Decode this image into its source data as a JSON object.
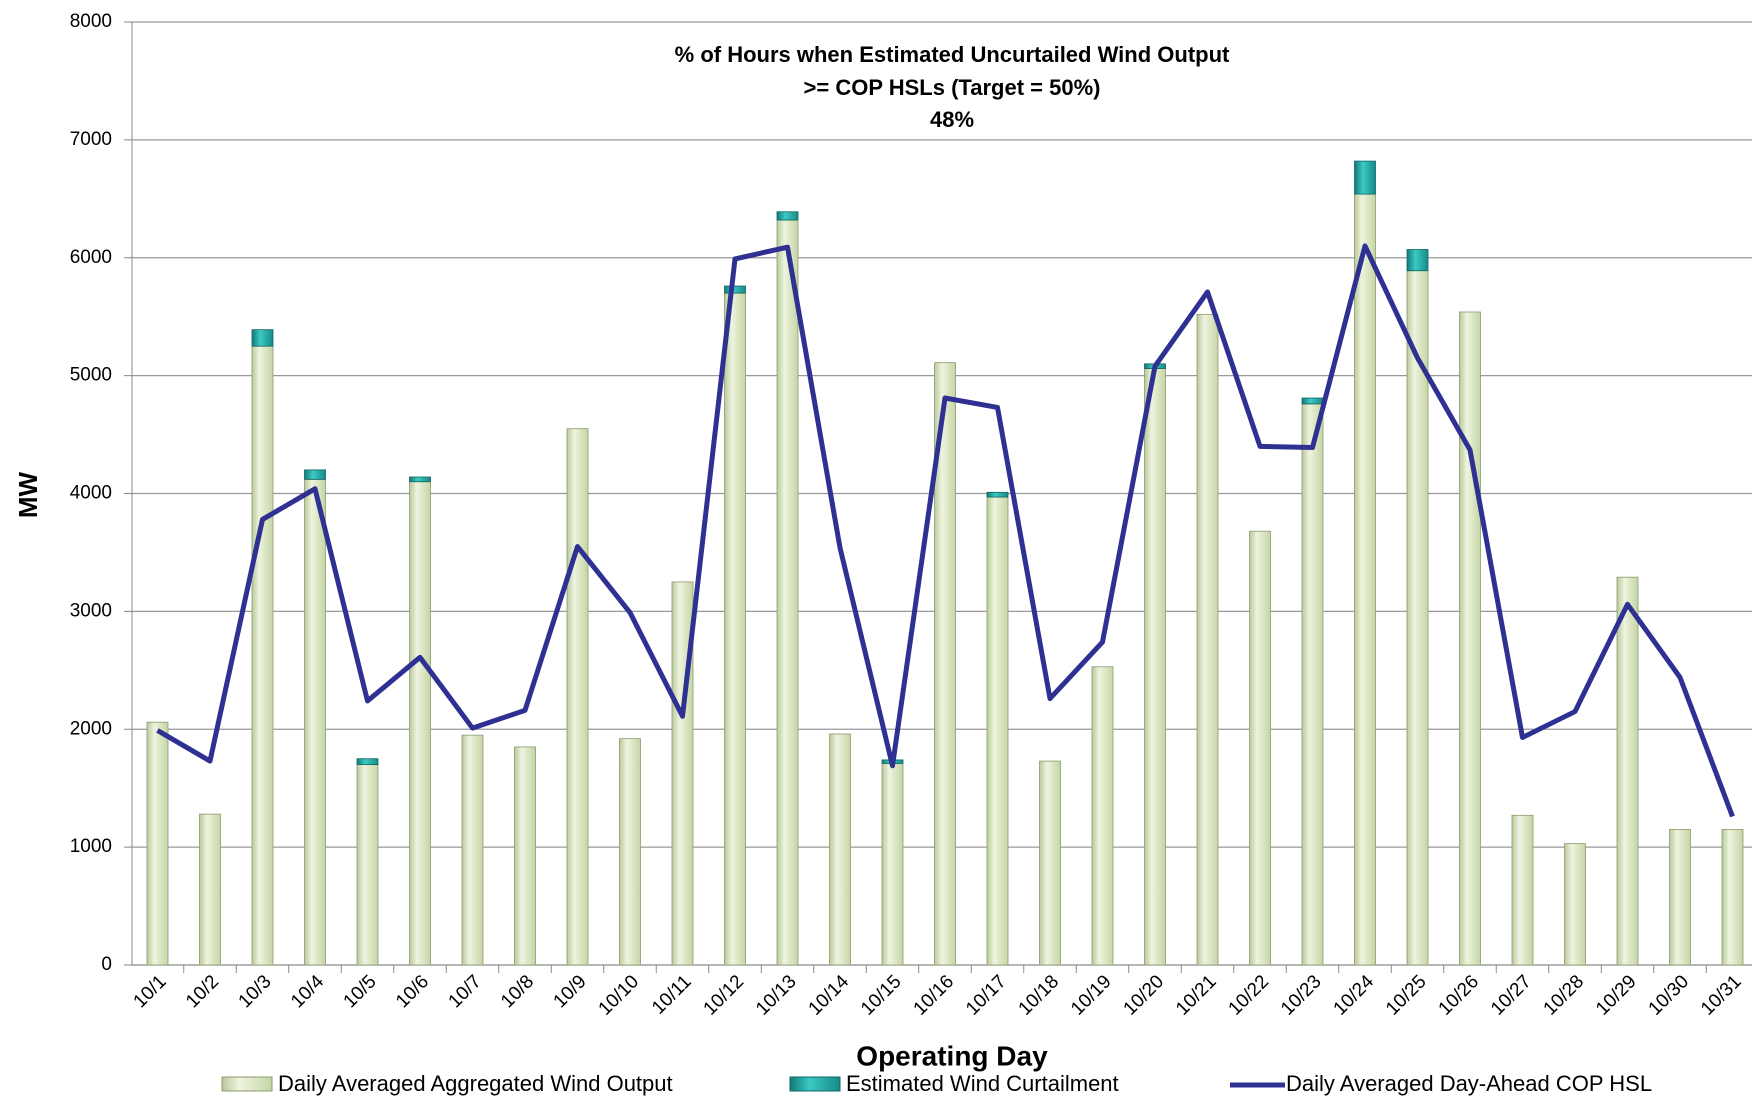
{
  "chart_data": {
    "type": "bar-line",
    "title": "% of Hours when Estimated Uncurtailed Wind Output",
    "subtitle": ">= COP HSLs (Target = 50%)",
    "annotation": "48%",
    "x_label": "Operating Day",
    "y_label": "MW",
    "categories": [
      "10/1",
      "10/2",
      "10/3",
      "10/4",
      "10/5",
      "10/6",
      "10/7",
      "10/8",
      "10/9",
      "10/10",
      "10/11",
      "10/12",
      "10/13",
      "10/14",
      "10/15",
      "10/16",
      "10/17",
      "10/18",
      "10/19",
      "10/20",
      "10/21",
      "10/22",
      "10/23",
      "10/24",
      "10/25",
      "10/26",
      "10/27",
      "10/28",
      "10/29",
      "10/30",
      "10/31"
    ],
    "series": [
      {
        "name": "Daily Averaged Aggregated Wind Output",
        "type": "bar",
        "color": "#d8e4bc",
        "values": [
          2060,
          1280,
          5250,
          4120,
          1700,
          4100,
          1950,
          1850,
          4550,
          1920,
          3250,
          5700,
          6320,
          1960,
          1710,
          5110,
          3970,
          1730,
          2530,
          5060,
          5520,
          3680,
          4760,
          6540,
          5890,
          5540,
          1270,
          1030,
          3290,
          1150,
          1150
        ]
      },
      {
        "name": "Estimated Wind Curtailment",
        "type": "bar",
        "color": "#1fa3a0",
        "values": [
          0,
          0,
          140,
          80,
          50,
          40,
          0,
          0,
          0,
          0,
          0,
          60,
          70,
          0,
          30,
          0,
          40,
          0,
          0,
          40,
          0,
          0,
          50,
          280,
          180,
          0,
          0,
          0,
          0,
          0,
          0
        ]
      },
      {
        "name": "Daily Averaged Day-Ahead COP HSL",
        "type": "line",
        "color": "#2e3192",
        "values": [
          1990,
          1730,
          3780,
          4040,
          2240,
          2610,
          2010,
          2160,
          3550,
          2990,
          2110,
          5990,
          6090,
          3540,
          1690,
          4810,
          4730,
          2260,
          2740,
          5080,
          5710,
          4400,
          4390,
          6100,
          5150,
          4370,
          1930,
          2150,
          3060,
          2440,
          1260
        ]
      }
    ],
    "ylim": [
      0,
      8000
    ],
    "yticks": [
      0,
      1000,
      2000,
      3000,
      4000,
      5000,
      6000,
      7000,
      8000
    ],
    "grid": true
  }
}
